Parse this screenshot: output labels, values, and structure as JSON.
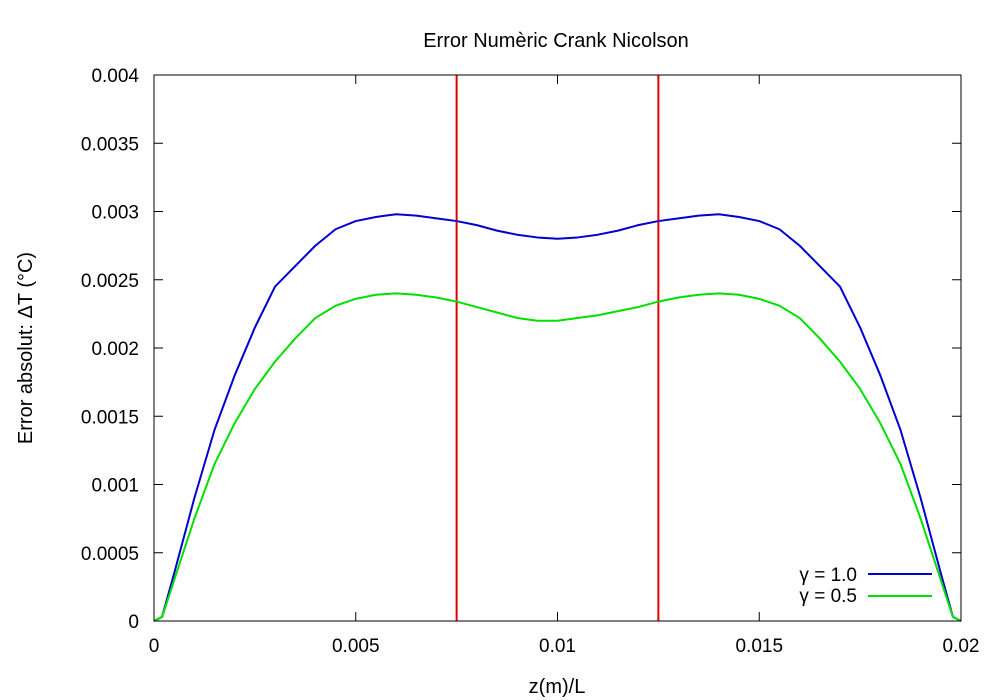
{
  "chart_data": {
    "type": "line",
    "title": "Error Numèric Crank Nicolson",
    "xlabel": "z(m)/L",
    "ylabel": "Error absolut: ΔT (°C)",
    "xlim": [
      0,
      0.02
    ],
    "ylim": [
      0,
      0.004
    ],
    "x_ticks": [
      "0",
      "0.005",
      "0.01",
      "0.015",
      "0.02"
    ],
    "x_tick_values": [
      0,
      0.005,
      0.01,
      0.015,
      0.02
    ],
    "y_ticks": [
      "0",
      "0.0005",
      "0.001",
      "0.0015",
      "0.002",
      "0.0025",
      "0.003",
      "0.0035",
      "0.004"
    ],
    "y_tick_values": [
      0,
      0.0005,
      0.001,
      0.0015,
      0.002,
      0.0025,
      0.003,
      0.0035,
      0.004
    ],
    "grid": false,
    "legend_position": "bottom-right",
    "vertical_lines": [
      {
        "x": 0.0075,
        "color": "#e00000"
      },
      {
        "x": 0.0125,
        "color": "#e00000"
      }
    ],
    "series": [
      {
        "name": "γ = 1.0",
        "color": "#0000d0",
        "x": [
          0,
          0.0002,
          0.0005,
          0.001,
          0.0015,
          0.002,
          0.0025,
          0.003,
          0.0035,
          0.004,
          0.0045,
          0.005,
          0.0055,
          0.006,
          0.0065,
          0.007,
          0.0075,
          0.008,
          0.0085,
          0.009,
          0.0095,
          0.01,
          0.0105,
          0.011,
          0.0115,
          0.012,
          0.0125,
          0.013,
          0.0135,
          0.014,
          0.0145,
          0.015,
          0.0155,
          0.016,
          0.0165,
          0.017,
          0.0175,
          0.018,
          0.0185,
          0.019,
          0.0195,
          0.0198,
          0.02
        ],
        "y": [
          0,
          3e-05,
          0.00035,
          0.0009,
          0.0014,
          0.0018,
          0.00215,
          0.00245,
          0.0026,
          0.00275,
          0.00287,
          0.00293,
          0.00296,
          0.00298,
          0.00297,
          0.00295,
          0.00293,
          0.0029,
          0.00286,
          0.00283,
          0.00281,
          0.0028,
          0.00281,
          0.00283,
          0.00286,
          0.0029,
          0.00293,
          0.00295,
          0.00297,
          0.00298,
          0.00296,
          0.00293,
          0.00287,
          0.00275,
          0.0026,
          0.00245,
          0.00215,
          0.0018,
          0.0014,
          0.0009,
          0.00035,
          3e-05,
          0
        ]
      },
      {
        "name": "γ = 0.5",
        "color": "#00e000",
        "x": [
          0,
          0.0002,
          0.0005,
          0.001,
          0.0015,
          0.002,
          0.0025,
          0.003,
          0.0035,
          0.004,
          0.0045,
          0.005,
          0.0055,
          0.006,
          0.0065,
          0.007,
          0.0075,
          0.008,
          0.0085,
          0.009,
          0.0095,
          0.01,
          0.0105,
          0.011,
          0.0115,
          0.012,
          0.0125,
          0.013,
          0.0135,
          0.014,
          0.0145,
          0.015,
          0.0155,
          0.016,
          0.0165,
          0.017,
          0.0175,
          0.018,
          0.0185,
          0.019,
          0.0195,
          0.0198,
          0.02
        ],
        "y": [
          0,
          3e-05,
          0.0003,
          0.00075,
          0.00115,
          0.00145,
          0.0017,
          0.0019,
          0.00207,
          0.00222,
          0.00231,
          0.00236,
          0.00239,
          0.0024,
          0.00239,
          0.00237,
          0.00234,
          0.0023,
          0.00226,
          0.00222,
          0.0022,
          0.0022,
          0.00222,
          0.00224,
          0.00227,
          0.0023,
          0.00234,
          0.00237,
          0.00239,
          0.0024,
          0.00239,
          0.00236,
          0.00231,
          0.00222,
          0.00207,
          0.0019,
          0.0017,
          0.00145,
          0.00115,
          0.00075,
          0.0003,
          3e-05,
          0
        ]
      }
    ]
  }
}
